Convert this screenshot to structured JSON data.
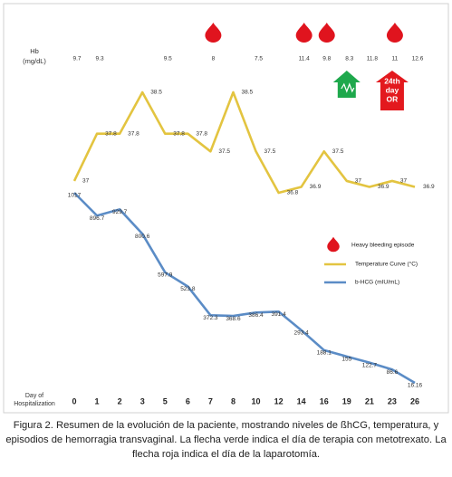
{
  "chart_data": {
    "type": "line",
    "hb_label": [
      "Hb",
      "(mg/dL)"
    ],
    "x_label": [
      "Day of",
      "Hospitalization"
    ],
    "categories": [
      0,
      1,
      2,
      3,
      5,
      6,
      7,
      8,
      10,
      12,
      14,
      16,
      19,
      21,
      23,
      26
    ],
    "hb": {
      "values": [
        9.7,
        9.3,
        null,
        null,
        9.5,
        null,
        8,
        null,
        7.5,
        null,
        11.4,
        9.8,
        8.3,
        11.8,
        11,
        12.6
      ]
    },
    "series": [
      {
        "name": "Temperature Curve (°C)",
        "color": "#e3c440",
        "values": [
          37,
          37.8,
          37.8,
          38.5,
          37.8,
          37.8,
          37.5,
          38.5,
          37.5,
          36.8,
          36.9,
          37.5,
          37,
          36.9,
          37,
          36.9
        ]
      },
      {
        "name": "b-HCG (mIU/mL)",
        "color": "#5b8cc6",
        "values": [
          1017,
          896.7,
          929.7,
          800.6,
          597.9,
          523.8,
          372.3,
          368.6,
          386.4,
          391.4,
          293.4,
          188.1,
          155,
          122.7,
          86.6,
          16.16
        ]
      }
    ],
    "bleeding": {
      "name": "Heavy bleeding episode",
      "color": "#e0141e",
      "days": [
        7,
        14,
        16,
        23
      ]
    },
    "annotations": [
      {
        "day": 19,
        "color": "#1ea84c"
      },
      {
        "day": 23,
        "color": "#e3191e",
        "label": [
          "24th",
          "day",
          "OR"
        ]
      }
    ]
  },
  "caption": "Figura 2. Resumen de la evolución de la paciente, mostrando niveles de ßhCG, temperatura, y episodios de hemorragia transvaginal. La flecha verde indica el día de terapia con metotrexato. La flecha roja indica el día de la laparotomía."
}
